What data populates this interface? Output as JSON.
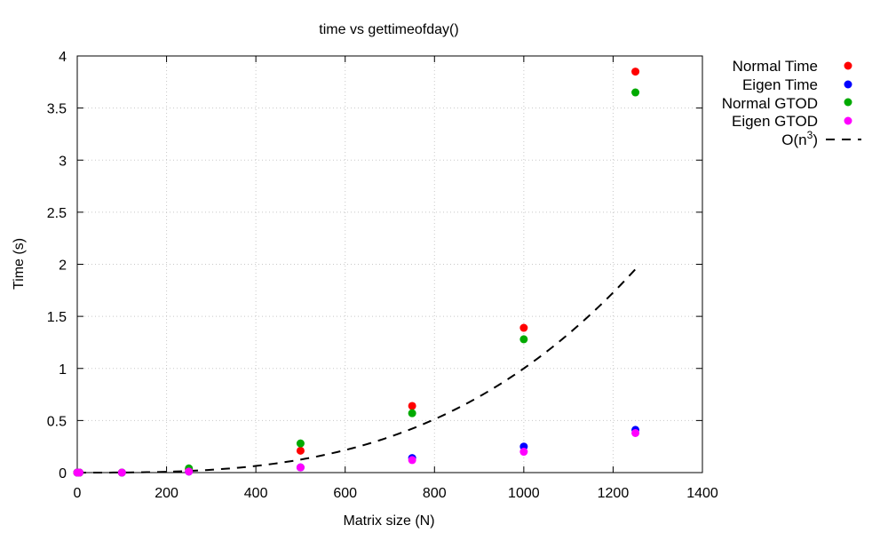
{
  "chart_data": {
    "type": "scatter",
    "title": "time vs gettimeofday()",
    "xlabel": "Matrix size (N)",
    "ylabel": "Time (s)",
    "xlim": [
      0,
      1400
    ],
    "ylim": [
      0,
      4
    ],
    "xticks": [
      0,
      200,
      400,
      600,
      800,
      1000,
      1200,
      1400
    ],
    "xtick_labels": [
      "0",
      "200",
      "400",
      "600",
      "800",
      "1000",
      "1200",
      "1400"
    ],
    "yticks": [
      0,
      0.5,
      1,
      1.5,
      2,
      2.5,
      3,
      3.5,
      4
    ],
    "ytick_labels": [
      "0",
      "0.5",
      "1",
      "1.5",
      "2",
      "2.5",
      "3",
      "3.5",
      "4"
    ],
    "grid": true,
    "legend_position": "outside top-right",
    "series": [
      {
        "name": "Normal Time",
        "color": "#ff0000",
        "marker": "circle",
        "points": [
          [
            0,
            0
          ],
          [
            5,
            0
          ],
          [
            100,
            0
          ],
          [
            250,
            0.03
          ],
          [
            500,
            0.21
          ],
          [
            750,
            0.64
          ],
          [
            1000,
            1.39
          ],
          [
            1250,
            3.85
          ]
        ]
      },
      {
        "name": "Eigen Time",
        "color": "#0000ff",
        "marker": "circle",
        "points": [
          [
            0,
            0
          ],
          [
            5,
            0
          ],
          [
            100,
            0
          ],
          [
            250,
            0.01
          ],
          [
            500,
            0.05
          ],
          [
            750,
            0.14
          ],
          [
            1000,
            0.25
          ],
          [
            1250,
            0.41
          ]
        ]
      },
      {
        "name": "Normal GTOD",
        "color": "#00aa00",
        "marker": "circle",
        "points": [
          [
            0,
            0
          ],
          [
            5,
            0
          ],
          [
            100,
            0
          ],
          [
            250,
            0.04
          ],
          [
            500,
            0.28
          ],
          [
            750,
            0.57
          ],
          [
            1000,
            1.28
          ],
          [
            1250,
            3.65
          ]
        ]
      },
      {
        "name": "Eigen GTOD",
        "color": "#ff00ff",
        "marker": "circle",
        "points": [
          [
            0,
            0
          ],
          [
            5,
            0
          ],
          [
            100,
            0
          ],
          [
            250,
            0.01
          ],
          [
            500,
            0.05
          ],
          [
            750,
            0.12
          ],
          [
            1000,
            0.2
          ],
          [
            1250,
            0.38
          ]
        ]
      }
    ],
    "curve": {
      "name_base": "O(n",
      "name_sup": "3",
      "name_close": ")",
      "color": "#000000",
      "style": "dashed",
      "formula": "y = 1e-9 * x^3",
      "coefficient": 1e-09,
      "x_range": [
        0,
        1250
      ]
    }
  }
}
